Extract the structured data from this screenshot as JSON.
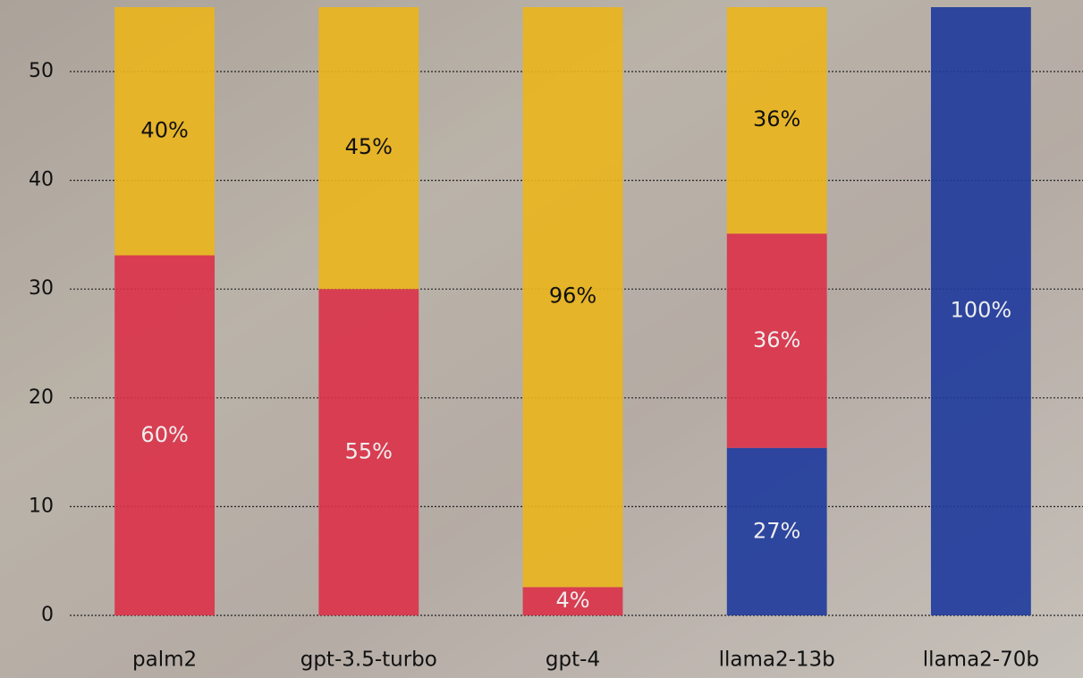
{
  "chart_data": {
    "type": "stacked-bar",
    "categories": [
      "palm2",
      "gpt-3.5-turbo",
      "gpt-4",
      "llama2-13b",
      "llama2-70b"
    ],
    "series": [
      {
        "color": "#1e3a9c",
        "values": [
          0,
          0,
          0,
          15.4,
          56
        ],
        "value_labels": [
          null,
          null,
          null,
          "27%",
          "100%"
        ]
      },
      {
        "color": "#dc3148",
        "values": [
          33.1,
          30,
          2.6,
          19.7,
          0
        ],
        "value_labels": [
          "60%",
          "55%",
          "4%",
          "36%",
          null
        ]
      },
      {
        "color": "#ebb51c",
        "values": [
          22.9,
          26,
          53.4,
          20.9,
          0
        ],
        "value_labels": [
          "40%",
          "45%",
          "96%",
          "36%",
          null
        ]
      }
    ],
    "ylim": [
      0,
      56
    ],
    "yticks": [
      0,
      10,
      20,
      30,
      40,
      50
    ],
    "grid": true
  }
}
